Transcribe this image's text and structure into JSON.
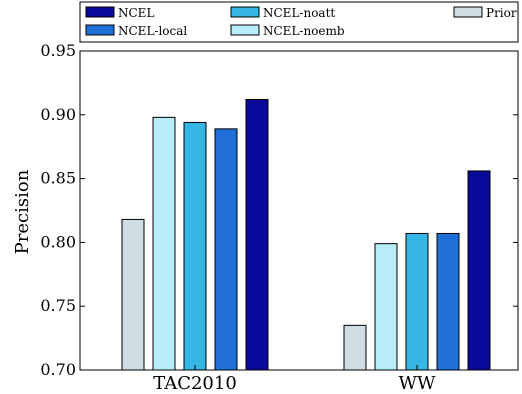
{
  "chart_data": {
    "type": "bar",
    "categories": [
      "TAC2010",
      "WW"
    ],
    "series": [
      {
        "name": "Prior",
        "color": "#cfdde4",
        "values": [
          0.818,
          0.735
        ]
      },
      {
        "name": "NCEL-noemb",
        "color": "#b8ecf6",
        "values": [
          0.898,
          0.799
        ]
      },
      {
        "name": "NCEL-noatt",
        "color": "#35b6e4",
        "values": [
          0.894,
          0.807
        ]
      },
      {
        "name": "NCEL-local",
        "color": "#1f6fd6",
        "values": [
          0.889,
          0.807
        ]
      },
      {
        "name": "NCEL",
        "color": "#0a0a9a",
        "values": [
          0.912,
          0.856
        ]
      }
    ],
    "legend_order": [
      "NCEL",
      "NCEL-local",
      "NCEL-noatt",
      "NCEL-noemb",
      "Prior"
    ],
    "ylabel": "Precision",
    "xlabel": "",
    "title": "",
    "ylim": [
      0.7,
      0.95
    ],
    "yticks": [
      "0.70",
      "0.75",
      "0.80",
      "0.85",
      "0.90",
      "0.95"
    ],
    "legend_position": "top",
    "grid": false
  }
}
